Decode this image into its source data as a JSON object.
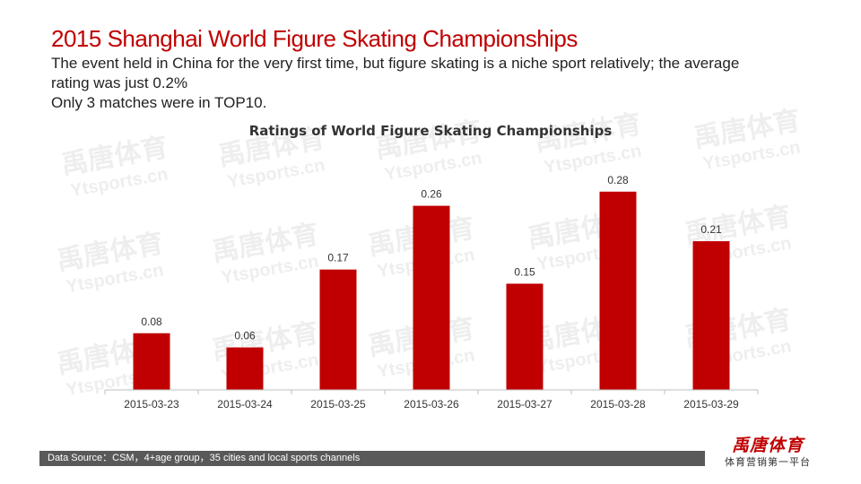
{
  "header": {
    "title": "2015 Shanghai World Figure Skating Championships",
    "subtitle_lines": [
      "The event held in China for the very first time,  but figure skating is a niche sport relatively; the average",
      "rating was just 0.2%",
      "Only 3 matches were in TOP10."
    ]
  },
  "watermark": {
    "cn": "禹唐体育",
    "en": "Ytsports.cn"
  },
  "chart_data": {
    "type": "bar",
    "title": "Ratings of World Figure Skating Championships",
    "categories": [
      "2015-03-23",
      "2015-03-24",
      "2015-03-25",
      "2015-03-26",
      "2015-03-27",
      "2015-03-28",
      "2015-03-29"
    ],
    "values": [
      0.08,
      0.06,
      0.17,
      0.26,
      0.15,
      0.28,
      0.21
    ],
    "data_labels": [
      "0.08",
      "0.06",
      "0.17",
      "0.26",
      "0.15",
      "0.28",
      "0.21"
    ],
    "xlabel": "",
    "ylabel": "",
    "ylim": [
      0,
      0.3
    ],
    "grid": false,
    "legend": "none",
    "bar_color": "#c00000"
  },
  "footer": {
    "source": "Data Source：CSM，4+age group，35 cities and local sports channels"
  },
  "logo": {
    "cn": "禹唐体育",
    "sub": "体育营销第一平台"
  },
  "colors": {
    "accent": "#c00000",
    "footer_bar": "#595959"
  }
}
